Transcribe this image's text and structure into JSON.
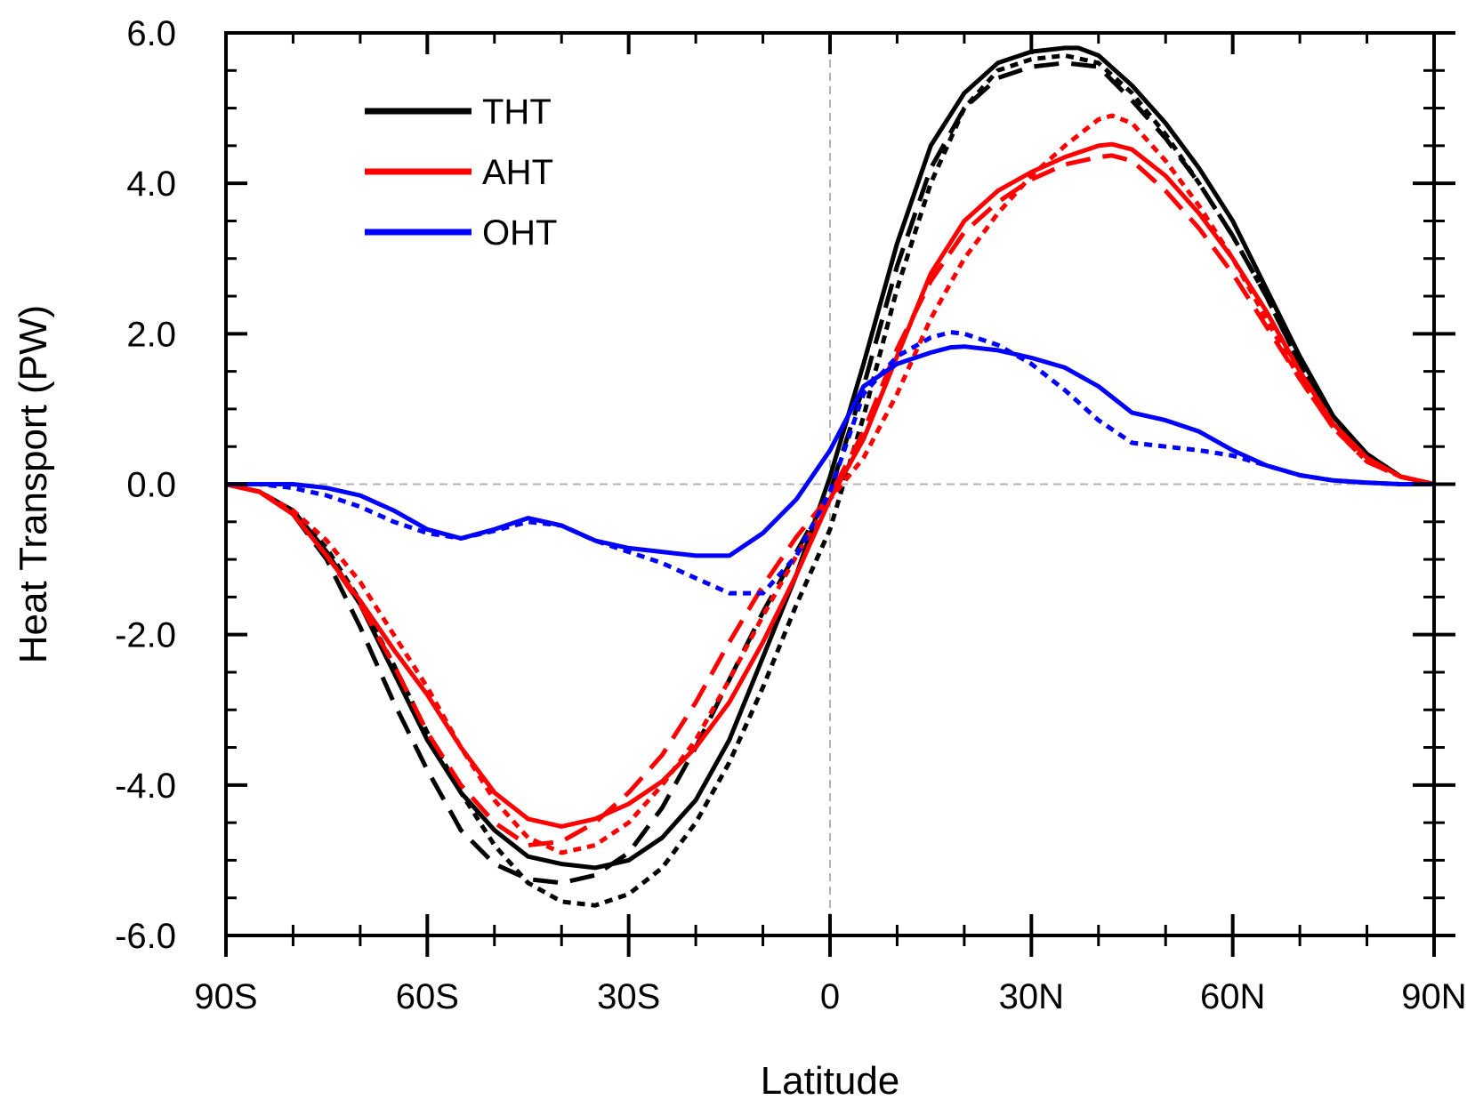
{
  "chart_data": {
    "type": "line",
    "title": "",
    "xlabel": "Latitude",
    "ylabel": "Heat Transport (PW)",
    "xlim": [
      -90,
      90
    ],
    "ylim": [
      -6,
      6
    ],
    "x_ticks": [
      {
        "value": -90,
        "label": "90S"
      },
      {
        "value": -60,
        "label": "60S"
      },
      {
        "value": -30,
        "label": "30S"
      },
      {
        "value": 0,
        "label": "0"
      },
      {
        "value": 30,
        "label": "30N"
      },
      {
        "value": 60,
        "label": "60N"
      },
      {
        "value": 90,
        "label": "90N"
      }
    ],
    "y_ticks": [
      {
        "value": 6,
        "label": "6.0"
      },
      {
        "value": 4,
        "label": "4.0"
      },
      {
        "value": 2,
        "label": "2.0"
      },
      {
        "value": 0,
        "label": "0.0"
      },
      {
        "value": -2,
        "label": "-2.0"
      },
      {
        "value": -4,
        "label": "-4.0"
      },
      {
        "value": -6,
        "label": "-6.0"
      }
    ],
    "x_minor_step": 10,
    "y_minor_step": 0.5,
    "grid": false,
    "zero_reference_lines": true,
    "legend_position": "top-left",
    "legend": [
      {
        "label": "THT",
        "color": "#000000"
      },
      {
        "label": "AHT",
        "color": "#ff0000"
      },
      {
        "label": "OHT",
        "color": "#0000ff"
      }
    ],
    "series": [
      {
        "group": "THT",
        "color": "#000000",
        "style": "solid",
        "x": [
          -90,
          -85,
          -80,
          -75,
          -70,
          -65,
          -60,
          -55,
          -50,
          -45,
          -40,
          -35,
          -30,
          -25,
          -20,
          -15,
          -10,
          -5,
          0,
          5,
          10,
          15,
          20,
          25,
          30,
          35,
          37,
          40,
          45,
          50,
          55,
          60,
          65,
          70,
          75,
          80,
          85,
          90
        ],
        "y": [
          0,
          -0.1,
          -0.35,
          -0.9,
          -1.6,
          -2.5,
          -3.4,
          -4.1,
          -4.6,
          -4.95,
          -5.05,
          -5.1,
          -5.0,
          -4.7,
          -4.2,
          -3.4,
          -2.3,
          -1.2,
          0.1,
          1.6,
          3.2,
          4.5,
          5.2,
          5.6,
          5.75,
          5.8,
          5.8,
          5.7,
          5.3,
          4.8,
          4.2,
          3.5,
          2.6,
          1.7,
          0.9,
          0.4,
          0.1,
          0
        ]
      },
      {
        "group": "THT",
        "color": "#000000",
        "style": "dashed",
        "x": [
          -90,
          -85,
          -80,
          -75,
          -70,
          -65,
          -60,
          -55,
          -50,
          -45,
          -40,
          -35,
          -30,
          -25,
          -20,
          -15,
          -10,
          -5,
          0,
          5,
          10,
          15,
          20,
          25,
          30,
          35,
          40,
          45,
          50,
          55,
          60,
          65,
          70,
          75,
          80,
          85,
          90
        ],
        "y": [
          0,
          -0.1,
          -0.4,
          -1.0,
          -1.9,
          -2.9,
          -3.8,
          -4.6,
          -5.05,
          -5.25,
          -5.3,
          -5.2,
          -4.9,
          -4.3,
          -3.5,
          -2.6,
          -1.7,
          -0.9,
          -0.1,
          1.3,
          2.9,
          4.2,
          5.0,
          5.4,
          5.55,
          5.6,
          5.55,
          5.1,
          4.6,
          4.0,
          3.3,
          2.5,
          1.6,
          0.9,
          0.4,
          0.1,
          0
        ]
      },
      {
        "group": "THT",
        "color": "#000000",
        "style": "dotted",
        "x": [
          -90,
          -85,
          -80,
          -75,
          -70,
          -65,
          -60,
          -55,
          -50,
          -45,
          -40,
          -35,
          -30,
          -25,
          -20,
          -15,
          -10,
          -5,
          0,
          5,
          10,
          15,
          20,
          25,
          30,
          35,
          40,
          45,
          50,
          55,
          60,
          65,
          70,
          75,
          80,
          85,
          90
        ],
        "y": [
          0,
          -0.1,
          -0.35,
          -0.85,
          -1.55,
          -2.4,
          -3.3,
          -4.1,
          -4.8,
          -5.3,
          -5.55,
          -5.6,
          -5.45,
          -5.1,
          -4.5,
          -3.7,
          -2.7,
          -1.6,
          -0.6,
          0.9,
          2.6,
          4.0,
          5.0,
          5.5,
          5.65,
          5.7,
          5.6,
          5.2,
          4.65,
          4.0,
          3.3,
          2.5,
          1.6,
          0.9,
          0.4,
          0.1,
          0
        ]
      },
      {
        "group": "AHT",
        "color": "#ff0000",
        "style": "solid",
        "x": [
          -90,
          -85,
          -80,
          -75,
          -70,
          -65,
          -60,
          -55,
          -50,
          -45,
          -40,
          -35,
          -30,
          -25,
          -20,
          -15,
          -10,
          -5,
          0,
          5,
          10,
          15,
          20,
          25,
          30,
          35,
          40,
          42,
          45,
          50,
          55,
          60,
          65,
          70,
          75,
          80,
          85,
          90
        ],
        "y": [
          0,
          -0.1,
          -0.4,
          -0.95,
          -1.55,
          -2.2,
          -2.8,
          -3.5,
          -4.1,
          -4.45,
          -4.55,
          -4.45,
          -4.25,
          -3.95,
          -3.5,
          -2.9,
          -2.1,
          -1.2,
          -0.2,
          0.6,
          1.7,
          2.8,
          3.5,
          3.9,
          4.15,
          4.35,
          4.5,
          4.52,
          4.45,
          4.1,
          3.6,
          3.0,
          2.3,
          1.5,
          0.8,
          0.35,
          0.1,
          0
        ]
      },
      {
        "group": "AHT",
        "color": "#ff0000",
        "style": "dashed",
        "x": [
          -90,
          -85,
          -80,
          -75,
          -70,
          -65,
          -60,
          -55,
          -50,
          -45,
          -40,
          -35,
          -30,
          -25,
          -20,
          -15,
          -10,
          -5,
          0,
          5,
          10,
          15,
          20,
          25,
          30,
          35,
          40,
          42,
          45,
          50,
          55,
          60,
          65,
          70,
          75,
          80,
          85,
          90
        ],
        "y": [
          0,
          -0.1,
          -0.4,
          -0.95,
          -1.6,
          -2.4,
          -3.3,
          -4.0,
          -4.5,
          -4.8,
          -4.75,
          -4.5,
          -4.1,
          -3.6,
          -2.9,
          -2.1,
          -1.35,
          -0.7,
          -0.15,
          0.7,
          1.8,
          2.7,
          3.35,
          3.75,
          4.05,
          4.25,
          4.35,
          4.37,
          4.3,
          3.9,
          3.4,
          2.8,
          2.1,
          1.4,
          0.75,
          0.3,
          0.1,
          0
        ]
      },
      {
        "group": "AHT",
        "color": "#ff0000",
        "style": "dotted",
        "x": [
          -90,
          -85,
          -80,
          -75,
          -70,
          -65,
          -60,
          -55,
          -50,
          -45,
          -40,
          -35,
          -30,
          -25,
          -20,
          -15,
          -10,
          -5,
          0,
          5,
          10,
          15,
          20,
          25,
          30,
          35,
          40,
          42,
          45,
          50,
          55,
          60,
          65,
          70,
          75,
          80,
          85,
          90
        ],
        "y": [
          0,
          -0.1,
          -0.35,
          -0.75,
          -1.3,
          -2.0,
          -2.7,
          -3.5,
          -4.2,
          -4.7,
          -4.9,
          -4.8,
          -4.5,
          -4.0,
          -3.4,
          -2.6,
          -1.75,
          -0.95,
          -0.2,
          0.35,
          1.2,
          2.2,
          3.0,
          3.6,
          4.1,
          4.5,
          4.85,
          4.9,
          4.8,
          4.3,
          3.7,
          3.0,
          2.2,
          1.4,
          0.75,
          0.3,
          0.1,
          0
        ]
      },
      {
        "group": "OHT",
        "color": "#0000ff",
        "style": "solid",
        "x": [
          -90,
          -85,
          -80,
          -75,
          -70,
          -65,
          -60,
          -55,
          -50,
          -45,
          -40,
          -35,
          -30,
          -25,
          -20,
          -15,
          -10,
          -5,
          0,
          5,
          10,
          15,
          18,
          20,
          25,
          30,
          35,
          40,
          45,
          50,
          55,
          60,
          65,
          70,
          75,
          80,
          85,
          90
        ],
        "y": [
          0,
          0,
          0,
          -0.05,
          -0.15,
          -0.35,
          -0.6,
          -0.72,
          -0.6,
          -0.45,
          -0.55,
          -0.75,
          -0.85,
          -0.9,
          -0.95,
          -0.95,
          -0.65,
          -0.2,
          0.45,
          1.3,
          1.6,
          1.75,
          1.82,
          1.83,
          1.78,
          1.68,
          1.55,
          1.3,
          0.95,
          0.85,
          0.7,
          0.45,
          0.25,
          0.12,
          0.05,
          0.02,
          0,
          0
        ]
      },
      {
        "group": "OHT",
        "color": "#0000ff",
        "style": "dotted",
        "x": [
          -90,
          -85,
          -80,
          -75,
          -70,
          -65,
          -60,
          -55,
          -50,
          -45,
          -40,
          -35,
          -30,
          -25,
          -20,
          -15,
          -10,
          -5,
          0,
          5,
          10,
          15,
          18,
          20,
          25,
          30,
          35,
          40,
          45,
          50,
          55,
          60,
          65,
          70,
          75,
          80,
          85,
          90
        ],
        "y": [
          0,
          0,
          -0.05,
          -0.15,
          -0.3,
          -0.5,
          -0.65,
          -0.72,
          -0.62,
          -0.5,
          -0.55,
          -0.75,
          -0.9,
          -1.05,
          -1.25,
          -1.45,
          -1.45,
          -0.95,
          -0.1,
          1.2,
          1.7,
          1.95,
          2.02,
          2.0,
          1.85,
          1.6,
          1.25,
          0.85,
          0.55,
          0.5,
          0.45,
          0.38,
          0.25,
          0.12,
          0.05,
          0.02,
          0,
          0
        ]
      }
    ]
  }
}
